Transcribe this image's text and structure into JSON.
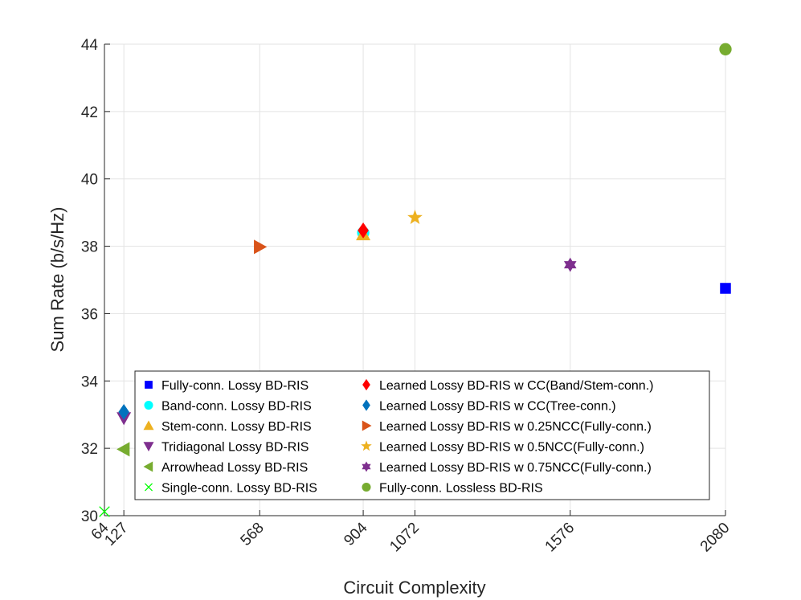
{
  "chart_data": {
    "type": "scatter",
    "title": "",
    "xlabel": "Circuit Complexity",
    "ylabel": "Sum Rate (b/s/Hz)",
    "xlim": [
      64,
      2080
    ],
    "ylim": [
      30,
      44
    ],
    "grid": true,
    "x_ticks": [
      64,
      127,
      568,
      904,
      1072,
      1576,
      2080
    ],
    "y_ticks": [
      30,
      32,
      34,
      36,
      38,
      40,
      42,
      44
    ],
    "legend_position": "bottom-center",
    "series": [
      {
        "name": "Fully-conn. Lossy BD-RIS",
        "marker": "square",
        "color": "#0000ff",
        "filled": true,
        "x": 2080,
        "y": 36.75
      },
      {
        "name": "Band-conn. Lossy BD-RIS",
        "marker": "circle",
        "color": "#00ffff",
        "filled": true,
        "x": 904,
        "y": 38.4
      },
      {
        "name": "Stem-conn. Lossy BD-RIS",
        "marker": "triangle-up",
        "color": "#edb120",
        "filled": true,
        "x": 904,
        "y": 38.35
      },
      {
        "name": "Tridiagonal Lossy BD-RIS",
        "marker": "triangle-down",
        "color": "#7e2f8e",
        "filled": true,
        "x": 127,
        "y": 32.9
      },
      {
        "name": "Arrowhead Lossy BD-RIS",
        "marker": "triangle-left",
        "color": "#77ac30",
        "filled": true,
        "x": 127,
        "y": 31.97
      },
      {
        "name": "Single-conn. Lossy BD-RIS",
        "marker": "x",
        "color": "#00ff00",
        "filled": false,
        "x": 64,
        "y": 30.12
      },
      {
        "name": "Learned Lossy BD-RIS w CC(Band/Stem-conn.)",
        "marker": "diamond",
        "color": "#ff0000",
        "filled": true,
        "x": 904,
        "y": 38.47
      },
      {
        "name": "Learned Lossy BD-RIS w CC(Tree-conn.)",
        "marker": "diamond",
        "color": "#0072bd",
        "filled": true,
        "x": 127,
        "y": 33.08
      },
      {
        "name": "Learned Lossy BD-RIS w 0.25NCC(Fully-conn.)",
        "marker": "triangle-right",
        "color": "#d95319",
        "filled": true,
        "x": 568,
        "y": 37.98
      },
      {
        "name": "Learned Lossy BD-RIS w 0.5NCC(Fully-conn.)",
        "marker": "pentagram",
        "color": "#edb120",
        "filled": true,
        "x": 1072,
        "y": 38.85
      },
      {
        "name": "Learned Lossy BD-RIS w 0.75NCC(Fully-conn.)",
        "marker": "hexagram",
        "color": "#7e2f8e",
        "filled": true,
        "x": 1576,
        "y": 37.45
      },
      {
        "name": "Fully-conn. Lossless BD-RIS",
        "marker": "circle",
        "color": "#77ac30",
        "filled": true,
        "x": 2080,
        "y": 43.85
      }
    ]
  }
}
